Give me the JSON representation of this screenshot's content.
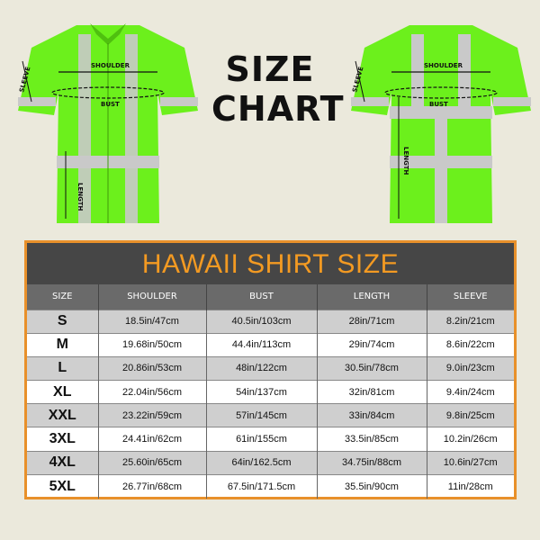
{
  "heading": {
    "line1": "SIZE",
    "line2": "CHART"
  },
  "diagram_labels": {
    "shoulder": "SHOULDER",
    "bust": "BUST",
    "sleeve": "SLEEVE",
    "length": "LENGTH"
  },
  "colors": {
    "shirt": "#6cf01c",
    "reflective": "#c9c9c9",
    "accent": "#f39a22",
    "title_band": "#464646"
  },
  "table": {
    "title": "HAWAII SHIRT SIZE",
    "headers": [
      "SIZE",
      "SHOULDER",
      "BUST",
      "LENGTH",
      "SLEEVE"
    ],
    "rows": [
      [
        "S",
        "18.5in/47cm",
        "40.5in/103cm",
        "28in/71cm",
        "8.2in/21cm"
      ],
      [
        "M",
        "19.68in/50cm",
        "44.4in/113cm",
        "29in/74cm",
        "8.6in/22cm"
      ],
      [
        "L",
        "20.86in/53cm",
        "48in/122cm",
        "30.5in/78cm",
        "9.0in/23cm"
      ],
      [
        "XL",
        "22.04in/56cm",
        "54in/137cm",
        "32in/81cm",
        "9.4in/24cm"
      ],
      [
        "XXL",
        "23.22in/59cm",
        "57in/145cm",
        "33in/84cm",
        "9.8in/25cm"
      ],
      [
        "3XL",
        "24.41in/62cm",
        "61in/155cm",
        "33.5in/85cm",
        "10.2in/26cm"
      ],
      [
        "4XL",
        "25.60in/65cm",
        "64in/162.5cm",
        "34.75in/88cm",
        "10.6in/27cm"
      ],
      [
        "5XL",
        "26.77in/68cm",
        "67.5in/171.5cm",
        "35.5in/90cm",
        "11in/28cm"
      ]
    ]
  }
}
